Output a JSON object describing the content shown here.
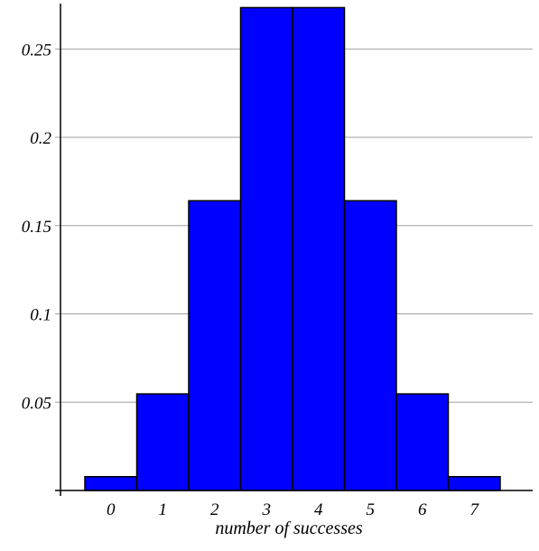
{
  "chart_data": {
    "type": "bar",
    "title": "",
    "xlabel": "number of successes",
    "ylabel": "",
    "categories": [
      "0",
      "1",
      "2",
      "3",
      "4",
      "5",
      "6",
      "7"
    ],
    "values": [
      0.0078125,
      0.0546875,
      0.1640625,
      0.2734375,
      0.2734375,
      0.1640625,
      0.0546875,
      0.0078125
    ],
    "ylim": [
      0,
      0.28
    ],
    "yticks": [
      0.05,
      0.1,
      0.15,
      0.2,
      0.25
    ],
    "ytick_labels": [
      "0.05",
      "0.1",
      "0.15",
      "0.2",
      "0.25"
    ],
    "grid": "horizontal",
    "colors": {
      "bar_fill": "#0000ff",
      "bar_stroke": "#000000",
      "grid": "#a0a0a0",
      "axis": "#000000"
    }
  }
}
